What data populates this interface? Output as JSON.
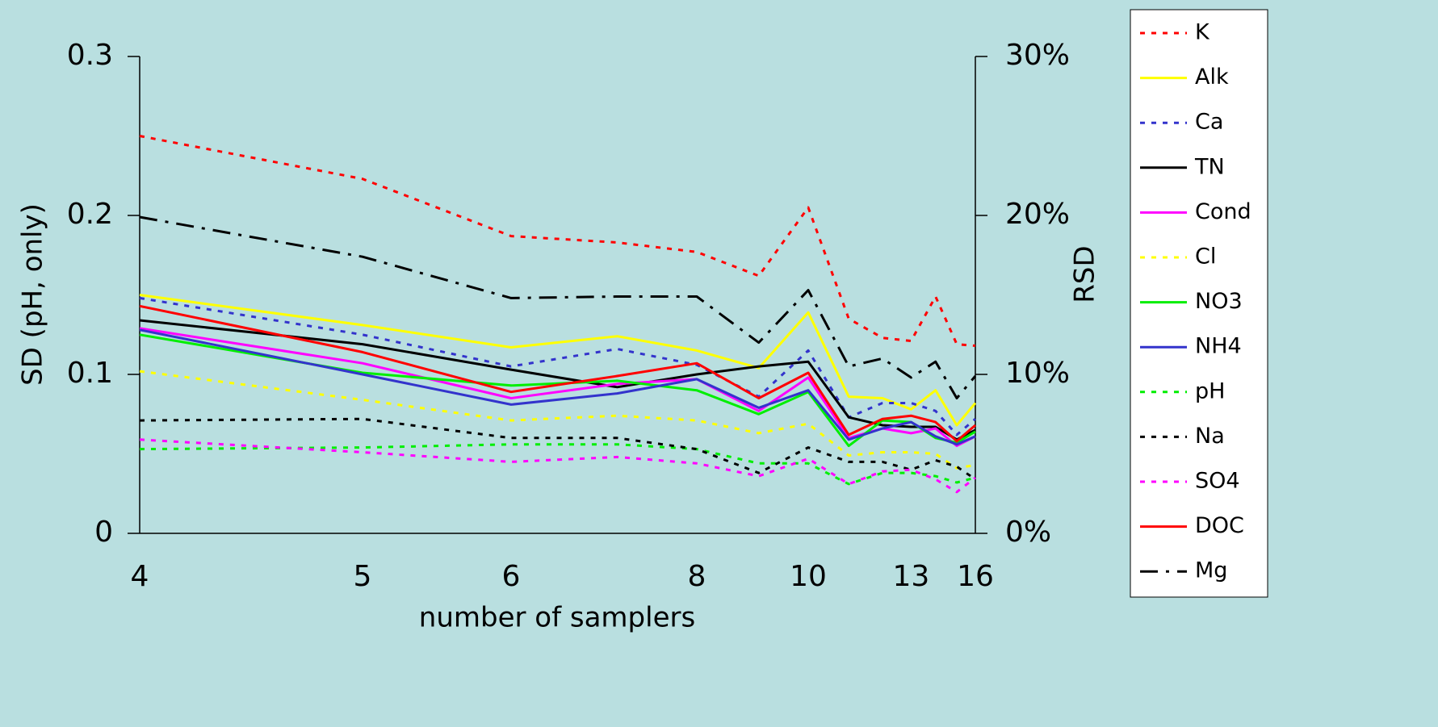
{
  "chart_data": {
    "type": "line",
    "x_label": "number of samplers",
    "y_label": "SD (pH, only)",
    "y2_label": "RSD",
    "x": [
      4,
      5,
      6,
      7,
      8,
      9,
      10,
      11,
      12,
      13,
      14,
      15,
      16
    ],
    "xlim": [
      4,
      16
    ],
    "xticks": [
      4,
      5,
      6,
      8,
      10,
      13,
      16
    ],
    "xscale": "reciprocal",
    "ylim": [
      0,
      0.3
    ],
    "yticks": [
      0,
      0.1,
      0.2,
      0.3
    ],
    "y2lim": [
      0,
      30
    ],
    "y2ticks": [
      {
        "value": 0,
        "label": "0%"
      },
      {
        "value": 10,
        "label": "10%"
      },
      {
        "value": 20,
        "label": "20%"
      },
      {
        "value": 30,
        "label": "30%"
      }
    ],
    "grid": false,
    "legend": "right",
    "series": [
      {
        "name": "K",
        "color": "#ff0000",
        "dash": "dotted",
        "values": [
          0.25,
          0.223,
          0.187,
          0.183,
          0.177,
          0.162,
          0.205,
          0.135,
          0.123,
          0.121,
          0.149,
          0.119,
          0.118
        ]
      },
      {
        "name": "Alk",
        "color": "#ffff00",
        "dash": "solid",
        "values": [
          0.15,
          0.131,
          0.117,
          0.124,
          0.115,
          0.104,
          0.139,
          0.086,
          0.085,
          0.078,
          0.09,
          0.068,
          0.082
        ]
      },
      {
        "name": "Ca",
        "color": "#3333cc",
        "dash": "dotted",
        "values": [
          0.148,
          0.125,
          0.105,
          0.116,
          0.106,
          0.086,
          0.115,
          0.073,
          0.082,
          0.082,
          0.077,
          0.062,
          0.072
        ]
      },
      {
        "name": "TN",
        "color": "#000000",
        "dash": "solid",
        "values": [
          0.134,
          0.119,
          0.103,
          0.092,
          0.1,
          0.105,
          0.108,
          0.073,
          0.068,
          0.067,
          0.067,
          0.059,
          0.065
        ]
      },
      {
        "name": "Cond",
        "color": "#ff00ff",
        "dash": "solid",
        "values": [
          0.129,
          0.107,
          0.085,
          0.094,
          0.097,
          0.077,
          0.098,
          0.06,
          0.066,
          0.063,
          0.066,
          0.055,
          0.061
        ]
      },
      {
        "name": "Cl",
        "color": "#ffff00",
        "dash": "dotted",
        "values": [
          0.102,
          0.084,
          0.071,
          0.074,
          0.071,
          0.063,
          0.069,
          0.049,
          0.051,
          0.051,
          0.05,
          0.041,
          0.043
        ]
      },
      {
        "name": "NO3",
        "color": "#00ee00",
        "dash": "solid",
        "values": [
          0.125,
          0.101,
          0.093,
          0.096,
          0.09,
          0.075,
          0.089,
          0.055,
          0.071,
          0.07,
          0.06,
          0.057,
          0.064
        ]
      },
      {
        "name": "NH4",
        "color": "#3333cc",
        "dash": "solid",
        "values": [
          0.128,
          0.1,
          0.081,
          0.088,
          0.097,
          0.079,
          0.09,
          0.059,
          0.066,
          0.07,
          0.061,
          0.056,
          0.061
        ]
      },
      {
        "name": "pH",
        "color": "#00ee00",
        "dash": "dotted",
        "values": [
          0.053,
          0.054,
          0.056,
          0.056,
          0.053,
          0.044,
          0.044,
          0.031,
          0.038,
          0.038,
          0.036,
          0.032,
          0.035
        ]
      },
      {
        "name": "Na",
        "color": "#000000",
        "dash": "dotted",
        "values": [
          0.071,
          0.072,
          0.06,
          0.06,
          0.053,
          0.038,
          0.054,
          0.045,
          0.045,
          0.04,
          0.046,
          0.042,
          0.034
        ]
      },
      {
        "name": "SO4",
        "color": "#ff00ff",
        "dash": "dotted",
        "values": [
          0.059,
          0.051,
          0.045,
          0.048,
          0.044,
          0.036,
          0.047,
          0.031,
          0.039,
          0.04,
          0.034,
          0.026,
          0.035
        ]
      },
      {
        "name": "DOC",
        "color": "#ff0000",
        "dash": "solid",
        "values": [
          0.143,
          0.114,
          0.089,
          0.099,
          0.107,
          0.085,
          0.101,
          0.062,
          0.072,
          0.074,
          0.07,
          0.058,
          0.068
        ]
      },
      {
        "name": "Mg",
        "color": "#000000",
        "dash": "dashdot",
        "values": [
          0.199,
          0.174,
          0.148,
          0.149,
          0.149,
          0.12,
          0.153,
          0.105,
          0.11,
          0.098,
          0.108,
          0.085,
          0.099
        ]
      }
    ]
  }
}
